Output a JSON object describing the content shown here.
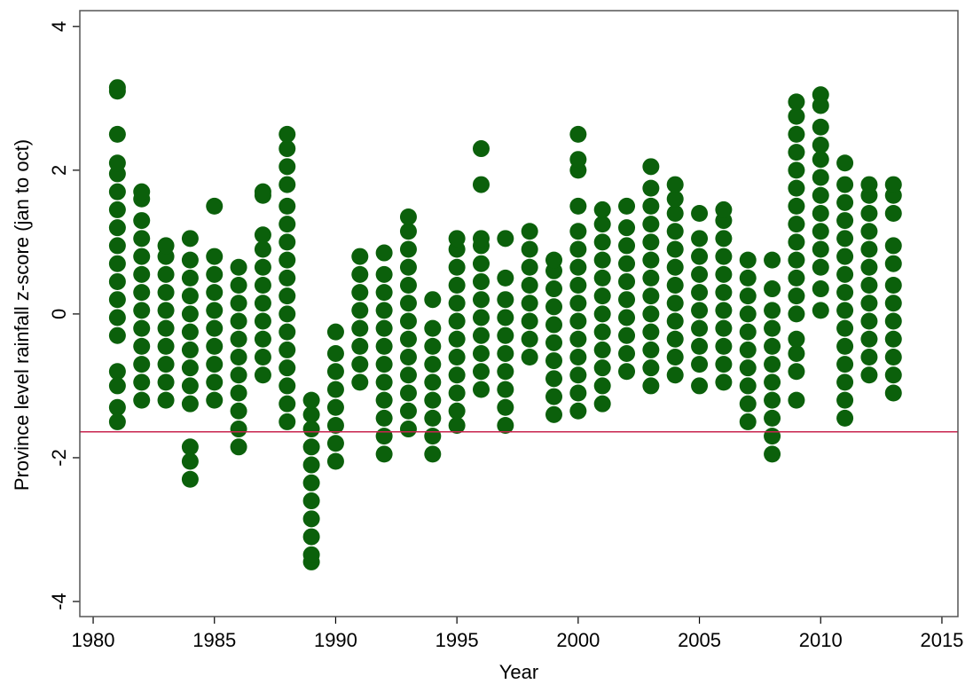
{
  "chart_data": {
    "type": "scatter",
    "xlabel": "Year",
    "ylabel": "Province level rainfall z-score (jan to oct)",
    "color": "#0b600b",
    "hline": -1.64,
    "hline_color": "#c8234e",
    "xlim": [
      1979.45,
      2015.66
    ],
    "ylim": [
      -4.21,
      4.22
    ],
    "xticks": [
      1980,
      1985,
      1990,
      1995,
      2000,
      2005,
      2010,
      2015
    ],
    "yticks": [
      -4,
      -2,
      0,
      2,
      4
    ],
    "x": [
      1981,
      1981,
      1981,
      1981,
      1981,
      1981,
      1981,
      1981,
      1981,
      1981,
      1981,
      1981,
      1981,
      1981,
      1981,
      1981,
      1981,
      1981,
      1982,
      1982,
      1982,
      1982,
      1982,
      1982,
      1982,
      1982,
      1982,
      1982,
      1982,
      1982,
      1982,
      1983,
      1983,
      1983,
      1983,
      1983,
      1983,
      1983,
      1983,
      1983,
      1983,
      1984,
      1984,
      1984,
      1984,
      1984,
      1984,
      1984,
      1984,
      1984,
      1984,
      1984,
      1984,
      1984,
      1985,
      1985,
      1985,
      1985,
      1985,
      1985,
      1985,
      1985,
      1985,
      1985,
      1986,
      1986,
      1986,
      1986,
      1986,
      1986,
      1986,
      1986,
      1986,
      1986,
      1986,
      1987,
      1987,
      1987,
      1987,
      1987,
      1987,
      1987,
      1987,
      1987,
      1987,
      1987,
      1988,
      1988,
      1988,
      1988,
      1988,
      1988,
      1988,
      1988,
      1988,
      1988,
      1988,
      1988,
      1988,
      1988,
      1988,
      1988,
      1988,
      1989,
      1989,
      1989,
      1989,
      1989,
      1989,
      1989,
      1989,
      1989,
      1989,
      1989,
      1990,
      1990,
      1990,
      1990,
      1990,
      1990,
      1990,
      1990,
      1991,
      1991,
      1991,
      1991,
      1991,
      1991,
      1991,
      1991,
      1992,
      1992,
      1992,
      1992,
      1992,
      1992,
      1992,
      1992,
      1992,
      1992,
      1992,
      1992,
      1993,
      1993,
      1993,
      1993,
      1993,
      1993,
      1993,
      1993,
      1993,
      1993,
      1993,
      1993,
      1993,
      1994,
      1994,
      1994,
      1994,
      1994,
      1994,
      1994,
      1994,
      1994,
      1995,
      1995,
      1995,
      1995,
      1995,
      1995,
      1995,
      1995,
      1995,
      1995,
      1995,
      1995,
      1996,
      1996,
      1996,
      1996,
      1996,
      1996,
      1996,
      1996,
      1996,
      1996,
      1996,
      1996,
      1997,
      1997,
      1997,
      1997,
      1997,
      1997,
      1997,
      1997,
      1997,
      1997,
      1998,
      1998,
      1998,
      1998,
      1998,
      1998,
      1998,
      1998,
      1999,
      1999,
      1999,
      1999,
      1999,
      1999,
      1999,
      1999,
      1999,
      1999,
      2000,
      2000,
      2000,
      2000,
      2000,
      2000,
      2000,
      2000,
      2000,
      2000,
      2000,
      2000,
      2000,
      2000,
      2000,
      2001,
      2001,
      2001,
      2001,
      2001,
      2001,
      2001,
      2001,
      2001,
      2001,
      2001,
      2001,
      2002,
      2002,
      2002,
      2002,
      2002,
      2002,
      2002,
      2002,
      2002,
      2002,
      2003,
      2003,
      2003,
      2003,
      2003,
      2003,
      2003,
      2003,
      2003,
      2003,
      2003,
      2003,
      2003,
      2004,
      2004,
      2004,
      2004,
      2004,
      2004,
      2004,
      2004,
      2004,
      2004,
      2004,
      2004,
      2005,
      2005,
      2005,
      2005,
      2005,
      2005,
      2005,
      2005,
      2005,
      2005,
      2006,
      2006,
      2006,
      2006,
      2006,
      2006,
      2006,
      2006,
      2006,
      2006,
      2006,
      2007,
      2007,
      2007,
      2007,
      2007,
      2007,
      2007,
      2007,
      2007,
      2007,
      2008,
      2008,
      2008,
      2008,
      2008,
      2008,
      2008,
      2008,
      2008,
      2008,
      2008,
      2009,
      2009,
      2009,
      2009,
      2009,
      2009,
      2009,
      2009,
      2009,
      2009,
      2009,
      2009,
      2009,
      2009,
      2009,
      2009,
      2009,
      2010,
      2010,
      2010,
      2010,
      2010,
      2010,
      2010,
      2010,
      2010,
      2010,
      2010,
      2010,
      2010,
      2011,
      2011,
      2011,
      2011,
      2011,
      2011,
      2011,
      2011,
      2011,
      2011,
      2011,
      2011,
      2011,
      2011,
      2011,
      2012,
      2012,
      2012,
      2012,
      2012,
      2012,
      2012,
      2012,
      2012,
      2012,
      2012,
      2012,
      2013,
      2013,
      2013,
      2013,
      2013,
      2013,
      2013,
      2013,
      2013,
      2013,
      2013,
      2013
    ],
    "y": [
      -0.3,
      -0.05,
      0.2,
      0.45,
      0.7,
      0.95,
      1.2,
      1.45,
      1.7,
      1.95,
      2.1,
      2.5,
      3.1,
      3.15,
      -0.8,
      -1.0,
      -1.3,
      -1.5,
      -1.2,
      -0.95,
      -0.7,
      -0.45,
      -0.2,
      0.05,
      0.3,
      0.55,
      0.8,
      1.05,
      1.3,
      1.6,
      1.7,
      -1.2,
      -0.95,
      -0.7,
      -0.45,
      -0.2,
      0.05,
      0.3,
      0.55,
      0.8,
      0.95,
      -1.25,
      -1.0,
      -0.75,
      -0.5,
      -0.25,
      0,
      0.25,
      0.5,
      0.75,
      1.05,
      -1.85,
      -2.05,
      -2.3,
      -1.2,
      -0.95,
      -0.7,
      -0.45,
      -0.2,
      0.05,
      0.3,
      0.55,
      0.8,
      1.5,
      -1.85,
      -1.6,
      -1.35,
      -1.1,
      -0.85,
      -0.6,
      -0.35,
      -0.1,
      0.15,
      0.4,
      0.65,
      -0.85,
      -0.6,
      -0.35,
      -0.1,
      0.15,
      0.4,
      0.65,
      0.9,
      1.1,
      1.65,
      1.7,
      -1.5,
      -1.25,
      -1.0,
      -0.75,
      -0.5,
      -0.25,
      0,
      0.25,
      0.5,
      0.75,
      1.0,
      1.25,
      1.5,
      1.8,
      2.05,
      2.3,
      2.5,
      -3.45,
      -3.35,
      -3.1,
      -2.85,
      -2.6,
      -2.35,
      -2.1,
      -1.85,
      -1.6,
      -1.4,
      -1.2,
      -2.05,
      -1.8,
      -1.55,
      -1.3,
      -1.05,
      -0.8,
      -0.55,
      -0.25,
      -0.95,
      -0.7,
      -0.45,
      -0.2,
      0.05,
      0.3,
      0.55,
      0.8,
      -1.95,
      -1.7,
      -1.45,
      -1.2,
      -0.95,
      -0.7,
      -0.45,
      -0.2,
      0.05,
      0.3,
      0.55,
      0.85,
      -1.6,
      -1.35,
      -1.1,
      -0.85,
      -0.6,
      -0.35,
      -0.1,
      0.15,
      0.4,
      0.65,
      0.9,
      1.15,
      1.35,
      -1.95,
      -1.7,
      -1.45,
      -1.2,
      -0.95,
      -0.7,
      -0.45,
      -0.2,
      0.2,
      -1.55,
      -1.35,
      -1.1,
      -0.85,
      -0.6,
      -0.35,
      -0.1,
      0.15,
      0.4,
      0.65,
      0.9,
      1.05,
      -1.05,
      -0.8,
      -0.55,
      -0.3,
      -0.05,
      0.2,
      0.45,
      0.7,
      0.95,
      1.05,
      1.8,
      2.3,
      -1.55,
      -1.3,
      -1.05,
      -0.8,
      -0.55,
      -0.3,
      -0.05,
      0.2,
      0.5,
      1.05,
      -0.6,
      -0.35,
      -0.1,
      0.15,
      0.4,
      0.65,
      0.9,
      1.15,
      -1.4,
      -1.15,
      -0.9,
      -0.65,
      -0.4,
      -0.15,
      0.1,
      0.35,
      0.6,
      0.75,
      -1.35,
      -1.1,
      -0.85,
      -0.6,
      -0.35,
      -0.1,
      0.15,
      0.4,
      0.65,
      0.9,
      1.15,
      1.5,
      2.0,
      2.15,
      2.5,
      -1.25,
      -1.0,
      -0.75,
      -0.5,
      -0.25,
      0,
      0.25,
      0.5,
      0.75,
      1.0,
      1.25,
      1.45,
      -0.8,
      -0.55,
      -0.3,
      -0.05,
      0.2,
      0.45,
      0.7,
      0.95,
      1.2,
      1.5,
      -1.0,
      -0.75,
      -0.5,
      -0.25,
      0,
      0.25,
      0.5,
      0.75,
      1.0,
      1.25,
      1.5,
      1.75,
      2.05,
      -0.85,
      -0.6,
      -0.35,
      -0.1,
      0.15,
      0.4,
      0.65,
      0.9,
      1.15,
      1.4,
      1.6,
      1.8,
      -1.0,
      -0.7,
      -0.45,
      -0.2,
      0.05,
      0.3,
      0.55,
      0.8,
      1.05,
      1.4,
      -0.95,
      -0.7,
      -0.45,
      -0.2,
      0.05,
      0.3,
      0.55,
      0.8,
      1.05,
      1.3,
      1.45,
      -1.5,
      -1.25,
      -1.0,
      -0.75,
      -0.5,
      -0.25,
      0,
      0.25,
      0.5,
      0.75,
      -1.95,
      -1.7,
      -1.45,
      -1.2,
      -0.95,
      -0.7,
      -0.45,
      -0.2,
      0.05,
      0.35,
      0.75,
      -1.2,
      -0.8,
      -0.55,
      -0.35,
      0,
      0.25,
      0.5,
      0.75,
      1.0,
      1.25,
      1.5,
      1.75,
      2.0,
      2.25,
      2.5,
      2.75,
      2.95,
      0.05,
      0.35,
      0.65,
      0.9,
      1.15,
      1.4,
      1.65,
      1.9,
      2.15,
      2.35,
      2.6,
      2.9,
      3.05,
      -1.45,
      -1.2,
      -0.95,
      -0.7,
      -0.45,
      -0.2,
      0.05,
      0.3,
      0.55,
      0.8,
      1.05,
      1.3,
      1.55,
      1.8,
      2.1,
      -0.85,
      -0.6,
      -0.35,
      -0.1,
      0.15,
      0.4,
      0.65,
      0.9,
      1.15,
      1.4,
      1.65,
      1.8,
      -1.1,
      -0.85,
      -0.6,
      -0.35,
      -0.1,
      0.15,
      0.4,
      0.7,
      0.95,
      1.4,
      1.65,
      1.8
    ]
  }
}
